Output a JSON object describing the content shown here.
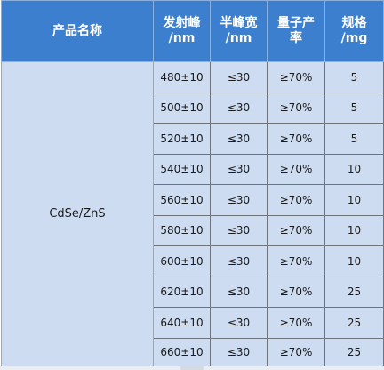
{
  "table": {
    "headers": {
      "name": "产品名称",
      "peak_line1": "发射峰",
      "peak_line2": "/nm",
      "fwhm_line1": "半峰宽",
      "fwhm_line2": "/nm",
      "qy_line1": "量子产",
      "qy_line2": "率",
      "spec_line1": "规格",
      "spec_line2": "/mg"
    },
    "product": "CdSe/ZnS",
    "rows": [
      {
        "peak": "480±10",
        "fwhm": "≤30",
        "qy": "≥70%",
        "spec": "5"
      },
      {
        "peak": "500±10",
        "fwhm": "≤30",
        "qy": "≥70%",
        "spec": "5"
      },
      {
        "peak": "520±10",
        "fwhm": "≤30",
        "qy": "≥70%",
        "spec": "5"
      },
      {
        "peak": "540±10",
        "fwhm": "≤30",
        "qy": "≥70%",
        "spec": "10"
      },
      {
        "peak": "560±10",
        "fwhm": "≤30",
        "qy": "≥70%",
        "spec": "10"
      },
      {
        "peak": "580±10",
        "fwhm": "≤30",
        "qy": "≥70%",
        "spec": "10"
      },
      {
        "peak": "600±10",
        "fwhm": "≤30",
        "qy": "≥70%",
        "spec": "10"
      },
      {
        "peak": "620±10",
        "fwhm": "≤30",
        "qy": "≥70%",
        "spec": "25"
      },
      {
        "peak": "640±10",
        "fwhm": "≤30",
        "qy": "≥70%",
        "spec": "25"
      },
      {
        "peak": "660±10",
        "fwhm": "≤30",
        "qy": "≥70%",
        "spec": "25"
      }
    ]
  },
  "colors": {
    "header_bg": "#3b7fce",
    "header_text": "#ffffff",
    "cell_bg": "#cddcf1",
    "cell_text": "#1a1a1a"
  }
}
